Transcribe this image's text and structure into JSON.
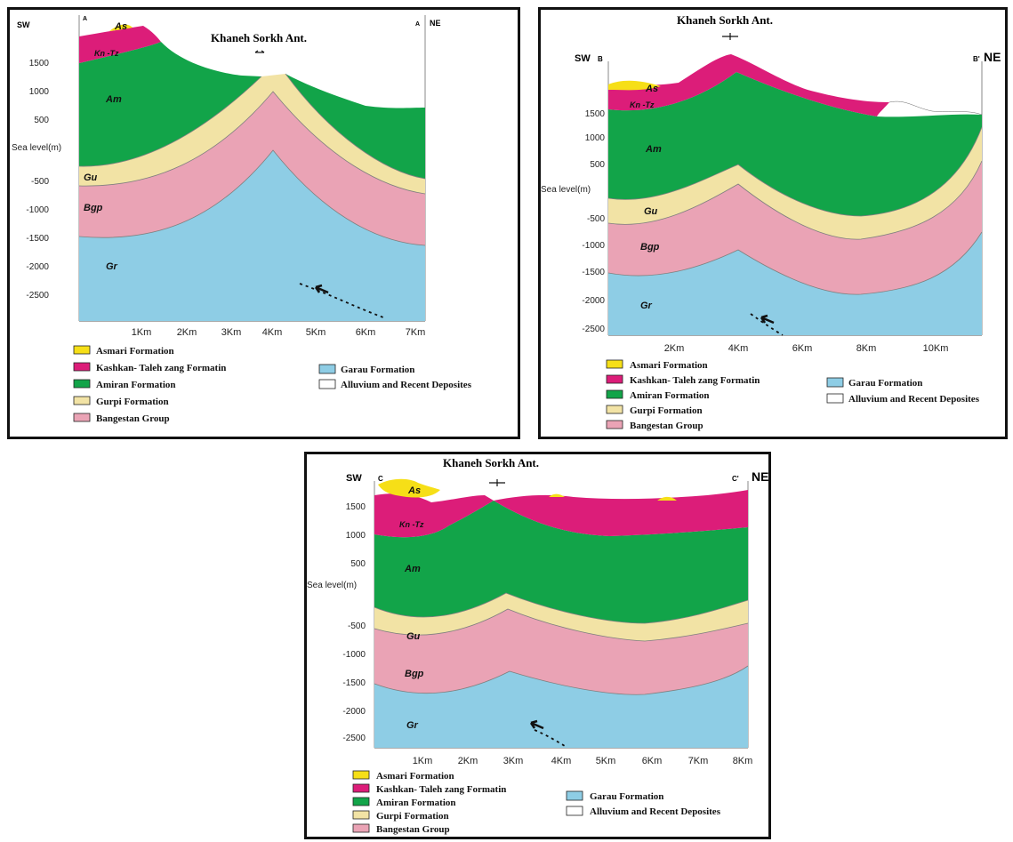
{
  "colors": {
    "asmari": "#f6df17",
    "kashkan": "#dc1d79",
    "amiran": "#12a449",
    "gurpi": "#f2e3a5",
    "bangestan": "#eaa3b5",
    "garau": "#8ecde5",
    "alluvium": "#ffffff",
    "contact": "#8a8a8a"
  },
  "legend": {
    "asmari": "Asmari Formation",
    "kashkan": "Kashkan- Taleh zang Formatin",
    "amiran": "Amiran Formation",
    "gurpi": "Gurpi Formation",
    "bangestan": "Bangestan Group",
    "garau": "Garau Formation",
    "alluvium": "Alluvium and Recent Deposites"
  },
  "sections": [
    {
      "id": "A",
      "title": "Khaneh Sorkh Ant.",
      "sw_label": "SW",
      "ne_label": "NE",
      "start_label": "A",
      "end_label": "A",
      "sea_level_label": "Sea level(m)",
      "y_ticks": [
        "1500",
        "1000",
        "500",
        "-500",
        "-1000",
        "-1500",
        "-2000",
        "-2500"
      ],
      "x_ticks": [
        "1Km",
        "2Km",
        "3Km",
        "4Km",
        "5Km",
        "6Km",
        "7Km"
      ],
      "unit_labels": {
        "as": "As",
        "kn": "Kn -Tz",
        "am": "Am",
        "gu": "Gu",
        "bgp": "Bgp",
        "gr": "Gr"
      }
    },
    {
      "id": "B",
      "title": "Khaneh Sorkh Ant.",
      "sw_label": "SW",
      "ne_label": "NE",
      "start_label": "B",
      "end_label": "B'",
      "sea_level_label": "Sea level(m)",
      "y_ticks": [
        "1500",
        "1000",
        "500",
        "-500",
        "-1000",
        "-1500",
        "-2000",
        "-2500"
      ],
      "x_ticks": [
        "2Km",
        "4Km",
        "6Km",
        "8Km",
        "10Km"
      ],
      "unit_labels": {
        "as": "As",
        "kn": "Kn -Tz",
        "am": "Am",
        "gu": "Gu",
        "bgp": "Bgp",
        "gr": "Gr"
      }
    },
    {
      "id": "C",
      "title": "Khaneh Sorkh Ant.",
      "sw_label": "SW",
      "ne_label": "NE",
      "start_label": "C",
      "end_label": "C'",
      "sea_level_label": "Sea level(m)",
      "y_ticks": [
        "1500",
        "1000",
        "500",
        "-500",
        "-1000",
        "-1500",
        "-2000",
        "-2500"
      ],
      "x_ticks": [
        "1Km",
        "2Km",
        "3Km",
        "4Km",
        "5Km",
        "6Km",
        "7Km",
        "8Km"
      ],
      "unit_labels": {
        "as": "As",
        "kn": "Kn -Tz",
        "am": "Am",
        "gu": "Gu",
        "bgp": "Bgp",
        "gr": "Gr"
      }
    }
  ]
}
